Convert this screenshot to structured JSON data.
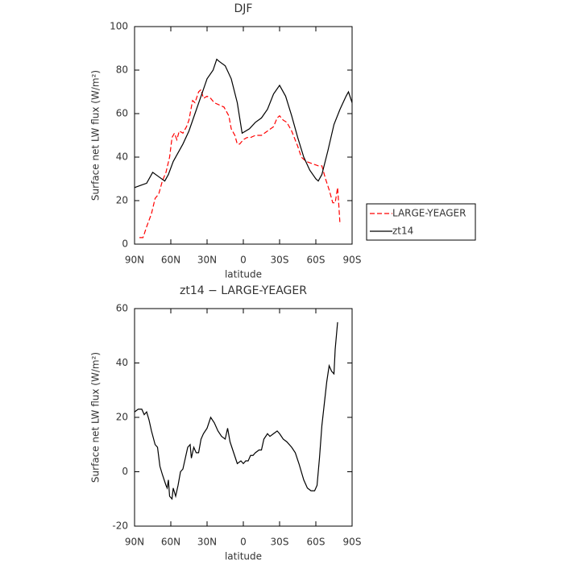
{
  "chart_data": [
    {
      "type": "line",
      "title": "DJF",
      "xlabel": "latitude",
      "ylabel": "Surface net LW flux (W/m²)",
      "xlim": [
        90,
        -90
      ],
      "ylim": [
        0,
        100
      ],
      "xticks": [
        {
          "value": 90,
          "label": "90N"
        },
        {
          "value": 60,
          "label": "60N"
        },
        {
          "value": 30,
          "label": "30N"
        },
        0,
        {
          "value": -30,
          "label": "30S"
        },
        {
          "value": -60,
          "label": "60S"
        },
        {
          "value": -90,
          "label": "90S"
        }
      ],
      "yticks": [
        0,
        20,
        40,
        60,
        80,
        100
      ],
      "legend": "right",
      "series": [
        {
          "name": "LARGE-YEAGER",
          "color": "#ff0000",
          "dash": true,
          "x": [
            86,
            83,
            80,
            76,
            73,
            70,
            67,
            64,
            61,
            59,
            57,
            55,
            53,
            50,
            47,
            45,
            42,
            40,
            37,
            35,
            33,
            30,
            27,
            24,
            20,
            16,
            12,
            10,
            7,
            5,
            3,
            0,
            -3,
            -6,
            -10,
            -15,
            -20,
            -25,
            -28,
            -30,
            -33,
            -36,
            -40,
            -45,
            -48,
            -52,
            -57,
            -62,
            -65,
            -68,
            -71,
            -74,
            -76,
            -78,
            -79,
            -80
          ],
          "values": [
            3,
            3,
            8,
            14,
            21,
            23,
            29,
            33,
            40,
            49,
            51,
            48,
            52,
            51,
            54,
            57,
            66,
            65,
            70,
            71,
            67,
            68,
            67,
            65,
            64,
            63,
            59,
            53,
            50,
            46,
            46,
            48,
            49,
            49,
            50,
            50,
            52,
            54,
            58,
            59,
            57,
            56,
            52,
            45,
            40,
            38,
            37,
            36,
            36,
            30,
            25,
            19,
            19,
            26,
            18,
            9
          ]
        },
        {
          "name": "zt14",
          "color": "#000000",
          "dash": false,
          "x": [
            90,
            85,
            80,
            75,
            70,
            65,
            62,
            58,
            55,
            50,
            45,
            40,
            35,
            30,
            25,
            22,
            20,
            15,
            10,
            5,
            1,
            -5,
            -10,
            -15,
            -20,
            -25,
            -30,
            -35,
            -40,
            -45,
            -50,
            -55,
            -60,
            -62,
            -65,
            -70,
            -75,
            -80,
            -85,
            -87,
            -90
          ],
          "values": [
            26,
            27,
            28,
            33,
            31,
            29,
            32,
            38,
            41,
            46,
            52,
            60,
            68,
            76,
            80,
            85,
            84,
            82,
            76,
            65,
            51,
            53,
            56,
            58,
            62,
            69,
            73,
            68,
            59,
            49,
            40,
            34,
            30,
            29,
            32,
            43,
            55,
            62,
            68,
            70,
            65
          ]
        }
      ]
    },
    {
      "type": "line",
      "title": "zt14 − LARGE-YEAGER",
      "xlabel": "latitude",
      "ylabel": "Surface net LW flux (W/m²)",
      "xlim": [
        90,
        -90
      ],
      "ylim": [
        -20,
        60
      ],
      "xticks": [
        {
          "value": 90,
          "label": "90N"
        },
        {
          "value": 60,
          "label": "60N"
        },
        {
          "value": 30,
          "label": "30N"
        },
        0,
        {
          "value": -30,
          "label": "30S"
        },
        {
          "value": -60,
          "label": "60S"
        },
        {
          "value": -90,
          "label": "90S"
        }
      ],
      "yticks": [
        -20,
        0,
        20,
        40,
        60
      ],
      "series": [
        {
          "color": "#000000",
          "dash": false,
          "x": [
            90,
            87,
            84,
            82,
            80,
            78,
            76,
            73,
            71,
            69,
            67,
            64,
            63,
            62,
            61,
            59,
            58,
            56,
            54,
            52,
            50,
            48,
            46,
            44,
            43,
            41,
            39,
            37,
            35,
            33,
            30,
            27,
            24,
            21,
            18,
            15,
            13,
            11,
            8,
            5,
            2,
            0,
            -2,
            -4,
            -6,
            -8,
            -10,
            -13,
            -15,
            -17,
            -20,
            -22,
            -25,
            -28,
            -30,
            -33,
            -36,
            -40,
            -43,
            -46,
            -50,
            -53,
            -56,
            -59,
            -61,
            -63,
            -65,
            -67,
            -69,
            -71,
            -73,
            -75,
            -76,
            -78
          ],
          "values": [
            22,
            23,
            23,
            21,
            22,
            19,
            15,
            10,
            9,
            2,
            -1,
            -5,
            -6,
            -3,
            -9,
            -10,
            -6,
            -9,
            -5,
            0,
            1,
            5,
            9,
            10,
            5,
            9,
            7,
            7,
            12,
            14,
            16,
            20,
            18,
            15,
            13,
            12,
            16,
            11,
            7,
            3,
            4,
            3,
            4,
            4,
            6,
            6,
            7,
            8,
            8,
            12,
            14,
            13,
            14,
            15,
            14,
            12,
            11,
            9,
            7,
            3,
            -3,
            -6,
            -7,
            -7,
            -5,
            5,
            17,
            25,
            33,
            39,
            37,
            36,
            45,
            55
          ]
        }
      ]
    }
  ]
}
